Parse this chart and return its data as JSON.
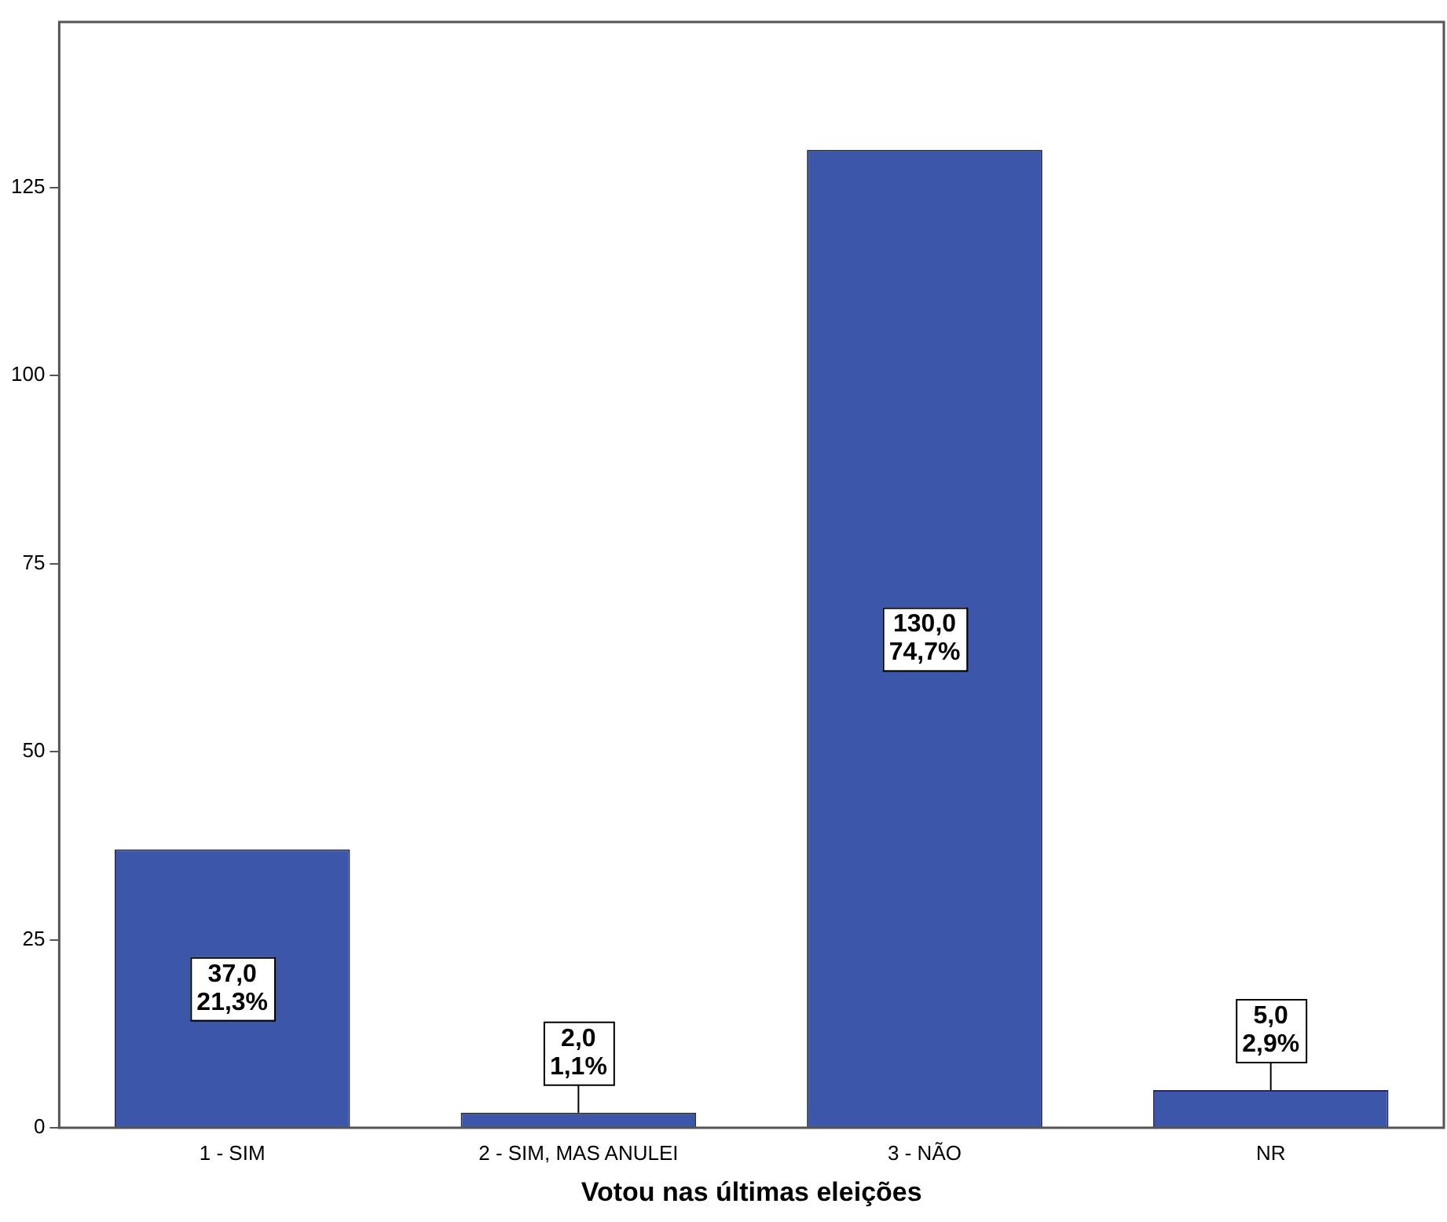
{
  "chart_data": {
    "type": "bar",
    "xlabel": "Votou nas últimas eleições",
    "categories": [
      "1 - SIM",
      "2 - SIM, MAS ANULEI",
      "3 - NÃO",
      "NR"
    ],
    "values": [
      37,
      2,
      130,
      5
    ],
    "value_labels": [
      "37,0\n21,3%",
      "2,0\n1,1%",
      "130,0\n74,7%",
      "5,0\n2,9%"
    ],
    "color": "#3c57a9",
    "ylim": [
      0,
      147
    ],
    "yticks": [
      0,
      25,
      50,
      75,
      100,
      125
    ],
    "grid": false,
    "legend": false
  }
}
